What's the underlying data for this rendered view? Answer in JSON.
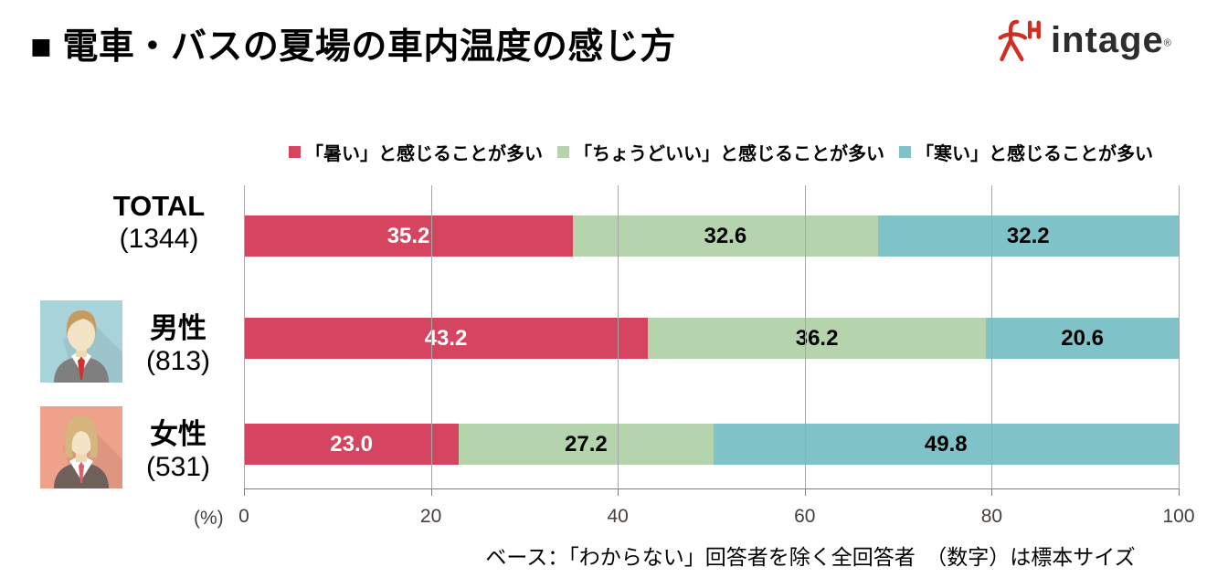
{
  "header": {
    "title": "■ 電車・バスの夏場の車内温度の感じ方",
    "logo_text": "intage",
    "registered_mark": "®"
  },
  "axis": {
    "unit_label": "(%)"
  },
  "footer": {
    "note": "ベース：「わからない」回答者を除く全回答者　（数字）は標本サイズ"
  },
  "icons": {
    "logo": "intage-logo-icon",
    "male": "male-avatar-icon",
    "female": "female-avatar-icon"
  },
  "colors": {
    "hot": "#d64560",
    "just_right": "#b5d4ad",
    "cold": "#7fc3c8",
    "gridline": "#a6a6a6",
    "male_avatar_bg": "#a9d3da",
    "female_avatar_bg": "#efa28b",
    "logo_red": "#cf2e21"
  },
  "chart_data": {
    "type": "bar",
    "orientation": "horizontal",
    "stacked": true,
    "title": "電車・バスの夏場の車内温度の感じ方",
    "categories": [
      "TOTAL",
      "男性",
      "女性"
    ],
    "category_counts": [
      "(1344)",
      "(813)",
      "(531)"
    ],
    "series": [
      {
        "name": "「暑い」と感じることが多い",
        "color": "#d64560",
        "label_color": "white",
        "values": [
          35.2,
          43.2,
          23.0
        ]
      },
      {
        "name": "「ちょうどいい」と感じることが多い",
        "color": "#b5d4ad",
        "label_color": "black",
        "values": [
          32.6,
          36.2,
          27.2
        ]
      },
      {
        "name": "「寒い」と感じることが多い",
        "color": "#7fc3c8",
        "label_color": "black",
        "values": [
          32.2,
          20.6,
          49.8
        ]
      }
    ],
    "xlim": [
      0,
      100
    ],
    "x_ticks": [
      0,
      20,
      40,
      60,
      80,
      100
    ],
    "x_unit": "(%)",
    "grid": true,
    "legend_position": "top"
  }
}
